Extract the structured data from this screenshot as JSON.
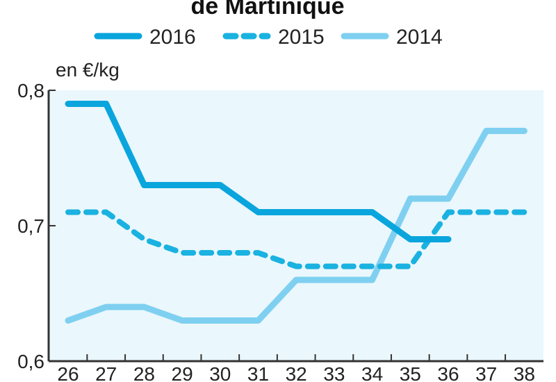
{
  "chart_data": {
    "type": "line",
    "title": "de Martinique",
    "ylabel": "en €/kg",
    "xlabel": "",
    "categories": [
      "26",
      "27",
      "28",
      "29",
      "30",
      "31",
      "32",
      "33",
      "34",
      "35",
      "36",
      "37",
      "38"
    ],
    "y_tick_labels": [
      "0,6",
      "0,7",
      "0,8"
    ],
    "ylim": [
      0.6,
      0.8
    ],
    "grid": false,
    "legend_position": "top",
    "series": [
      {
        "name": "2016",
        "style": "solid",
        "color": "#0aa5dd",
        "values": [
          0.79,
          0.79,
          0.73,
          0.73,
          0.73,
          0.71,
          0.71,
          0.71,
          0.71,
          0.69,
          0.69,
          null,
          null
        ]
      },
      {
        "name": "2015",
        "style": "dashed",
        "color": "#1ab2e0",
        "values": [
          0.71,
          0.71,
          0.69,
          0.68,
          0.68,
          0.68,
          0.67,
          0.67,
          0.67,
          0.67,
          0.71,
          0.71,
          0.71
        ]
      },
      {
        "name": "2014",
        "style": "solid",
        "color": "#7fd0f0",
        "values": [
          0.63,
          0.64,
          0.64,
          0.63,
          0.63,
          0.63,
          0.66,
          0.66,
          0.66,
          0.72,
          0.72,
          0.77,
          0.77
        ]
      }
    ],
    "colors": {
      "plot_background": "#eaf7fd",
      "axis": "#333333"
    }
  }
}
